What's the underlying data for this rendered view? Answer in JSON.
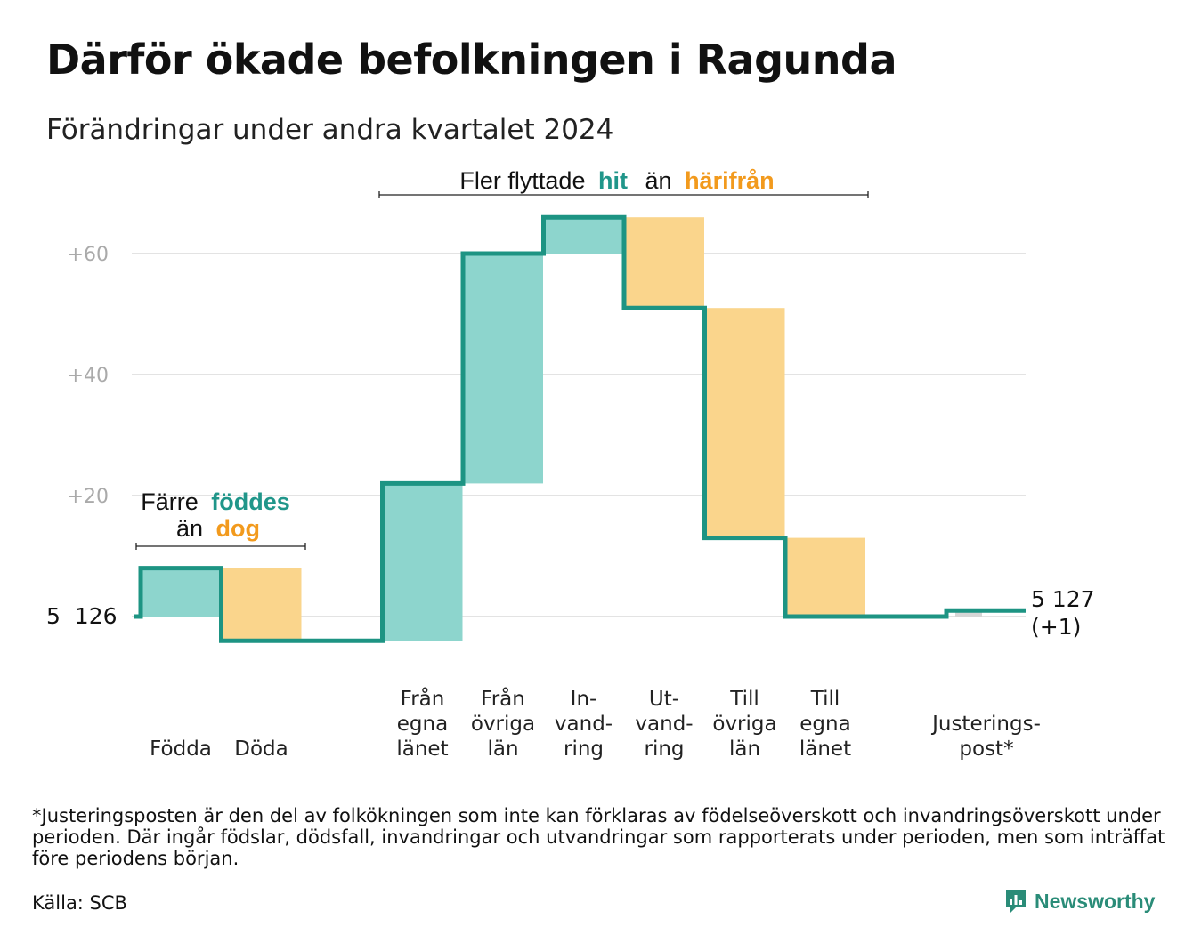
{
  "title": "Därför ökade befolkningen i Ragunda",
  "subtitle": "Förändringar under andra kvartalet 2024",
  "footnote": "*Justeringsposten är den del av folkökningen som inte kan förklaras av födelseöverskott och invandringsöverskott under perioden. Där ingår födslar, dödsfall, invandringar och utvandringar som rapporterats under perioden, men som inträffat före periodens början.",
  "source": "Källa: SCB",
  "brand": {
    "name": "Newsworthy",
    "icon": "newsworthy-logo-icon"
  },
  "colors": {
    "line": "#1d9483",
    "increase": "#8dd5cd",
    "decrease": "#fad58c",
    "adjustment": "#d6d6d6",
    "increase_text": "#20968a",
    "decrease_text": "#f29a1d",
    "grid": "#e3e3e3"
  },
  "annotations": {
    "births": {
      "prefix": "Färre",
      "in_word": "föddes",
      "mid": "än",
      "out_word": "dog"
    },
    "migration": {
      "prefix": "Fler flyttade",
      "in_word": "hit",
      "mid": "än",
      "out_word": "härifrån"
    }
  },
  "chart_data": {
    "type": "waterfall",
    "title": "Därför ökade befolkningen i Ragunda",
    "subtitle": "Förändringar under andra kvartalet 2024",
    "y_ticks": [
      "+20",
      "+40",
      "+60"
    ],
    "y_tick_values": [
      20,
      40,
      60
    ],
    "ylim": [
      -8,
      70
    ],
    "grid": true,
    "start": {
      "value": 5126,
      "label": "5  126"
    },
    "end": {
      "value": 5127,
      "label_line1": "5 127",
      "label_line2": "(+1)"
    },
    "steps": [
      {
        "label": [
          "Födda"
        ],
        "change": 8,
        "kind": "increase"
      },
      {
        "label": [
          "Döda"
        ],
        "change": -12,
        "kind": "decrease"
      },
      {
        "label": [
          "Från",
          "egna",
          "länet"
        ],
        "change": 26,
        "kind": "increase"
      },
      {
        "label": [
          "Från",
          "övriga",
          "län"
        ],
        "change": 38,
        "kind": "increase"
      },
      {
        "label": [
          "In-",
          "vand-",
          "ring"
        ],
        "change": 6,
        "kind": "increase"
      },
      {
        "label": [
          "Ut-",
          "vand-",
          "ring"
        ],
        "change": -15,
        "kind": "decrease"
      },
      {
        "label": [
          "Till",
          "övriga",
          "län"
        ],
        "change": -38,
        "kind": "decrease"
      },
      {
        "label": [
          "Till",
          "egna",
          "länet"
        ],
        "change": -13,
        "kind": "decrease"
      },
      {
        "label": [
          "Justerings-",
          "post*"
        ],
        "change": 1,
        "kind": "adjustment"
      }
    ]
  }
}
